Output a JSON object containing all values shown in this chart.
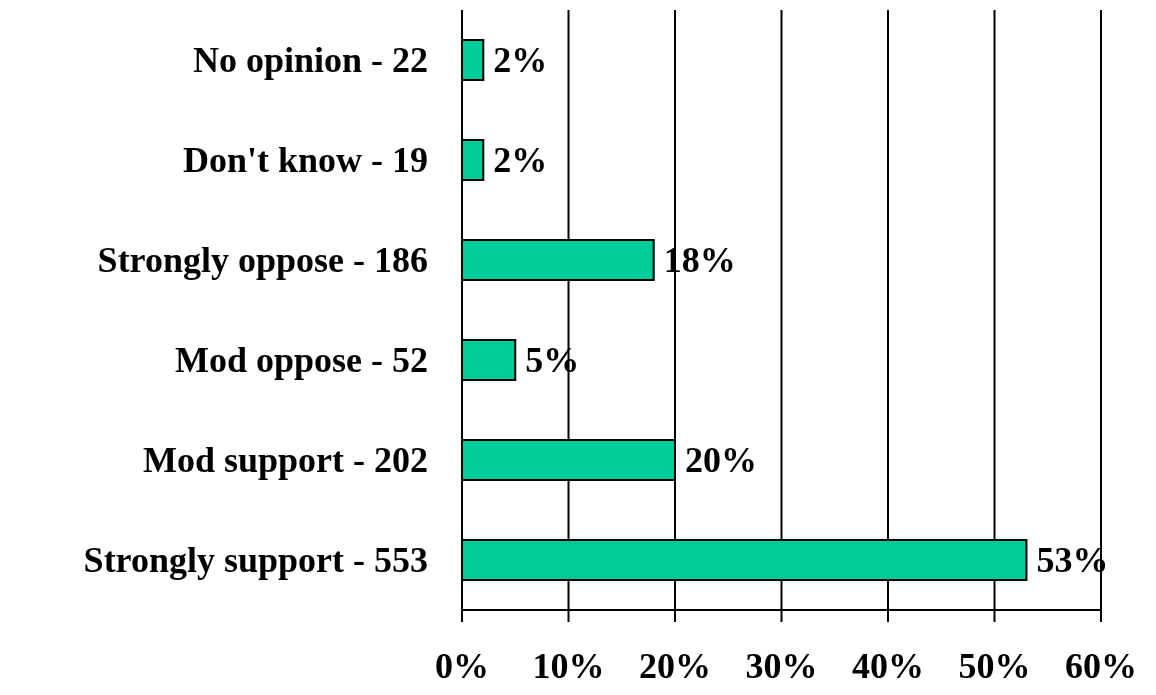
{
  "chart_data": {
    "type": "bar",
    "orientation": "horizontal",
    "categories": [
      "No opinion - 22",
      "Don't know - 19",
      "Strongly oppose - 186",
      "Mod oppose - 52",
      "Mod support - 202",
      "Strongly support - 553"
    ],
    "values": [
      2,
      2,
      18,
      5,
      20,
      53
    ],
    "value_labels": [
      "2%",
      "2%",
      "18%",
      "5%",
      "20%",
      "53%"
    ],
    "color": "#00cc99",
    "xlim": [
      0,
      60
    ],
    "xticks": [
      {
        "value": 0,
        "label": "0%"
      },
      {
        "value": 10,
        "label": "10%"
      },
      {
        "value": 20,
        "label": "20%"
      },
      {
        "value": 30,
        "label": "30%"
      },
      {
        "value": 40,
        "label": "40%"
      },
      {
        "value": 50,
        "label": "50%"
      },
      {
        "value": 60,
        "label": "60%"
      }
    ],
    "grid": "x",
    "legend": false
  }
}
